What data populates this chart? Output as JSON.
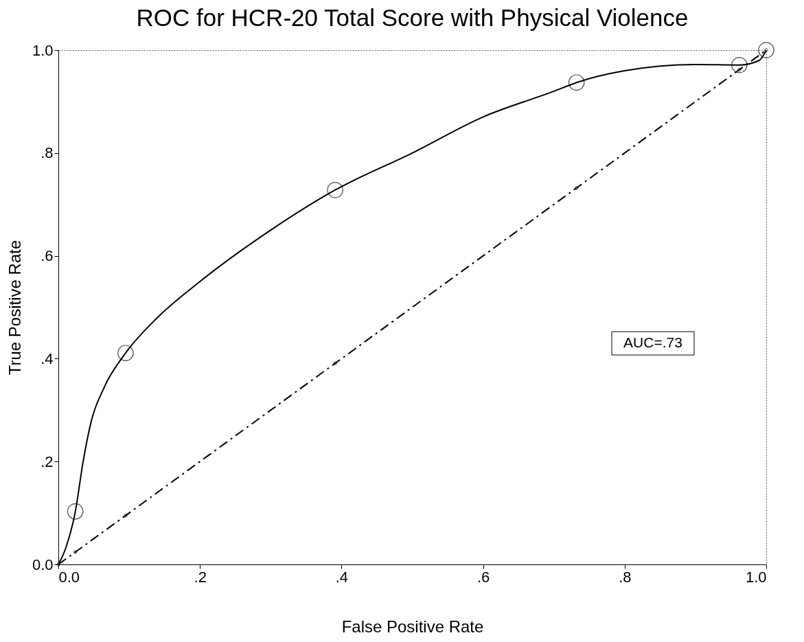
{
  "chart_data": {
    "type": "line",
    "title": "ROC for HCR-20 Total Score with Physical Violence",
    "xlabel": "False Positive Rate",
    "ylabel": "True Positive Rate",
    "xlim": [
      0,
      1
    ],
    "ylim": [
      0,
      1
    ],
    "xticks": [
      {
        "value": 0,
        "label": "0.0"
      },
      {
        "value": 0.2,
        "label": ".2"
      },
      {
        "value": 0.4,
        "label": ".4"
      },
      {
        "value": 0.6,
        "label": ".6"
      },
      {
        "value": 0.8,
        "label": ".8"
      },
      {
        "value": 1,
        "label": "1.0"
      }
    ],
    "yticks": [
      {
        "value": 0,
        "label": "0.0"
      },
      {
        "value": 0.2,
        "label": ".2"
      },
      {
        "value": 0.4,
        "label": ".4"
      },
      {
        "value": 0.6,
        "label": ".6"
      },
      {
        "value": 0.8,
        "label": ".8"
      },
      {
        "value": 1,
        "label": "1.0"
      }
    ],
    "grid": false,
    "series": [
      {
        "color": "#000000",
        "line_style": "solid",
        "marker": "none",
        "x": [
          0,
          0.01,
          0.024,
          0.035,
          0.045,
          0.065,
          0.095,
          0.14,
          0.2,
          0.3,
          0.391,
          0.5,
          0.6,
          0.7,
          0.732,
          0.8,
          0.9,
          0.962,
          0.99,
          1
        ],
        "values": [
          0,
          0.03,
          0.103,
          0.2,
          0.27,
          0.345,
          0.411,
          0.48,
          0.55,
          0.65,
          0.728,
          0.8,
          0.87,
          0.92,
          0.937,
          0.96,
          0.972,
          0.971,
          0.98,
          1
        ]
      },
      {
        "type": "scatter",
        "color": "#000000",
        "marker": "circle",
        "x": [
          0.024,
          0.095,
          0.391,
          0.732,
          0.962,
          1
        ],
        "values": [
          0.103,
          0.411,
          0.728,
          0.937,
          0.971,
          1
        ]
      },
      {
        "color": "#000000",
        "line_style": "dashed",
        "marker": "circle",
        "x": [
          0,
          0.024,
          0.095,
          0.391,
          0.732,
          0.962,
          1
        ],
        "values": [
          0,
          0.024,
          0.095,
          0.391,
          0.732,
          0.962,
          1
        ]
      }
    ],
    "annotations": [
      "AUC=.73"
    ]
  }
}
